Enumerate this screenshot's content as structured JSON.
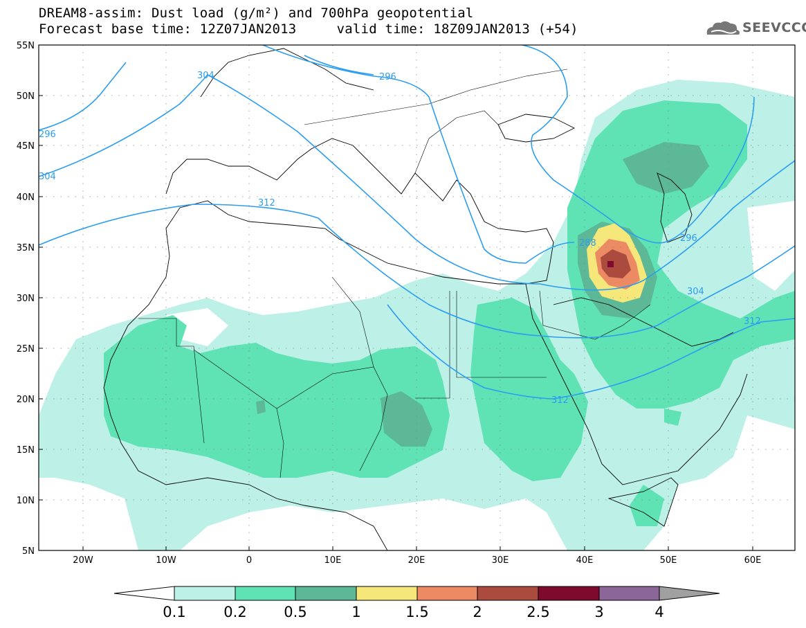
{
  "header": {
    "title_line1": "DREAM8-assim: Dust load (g/m²) and 700hPa geopotential",
    "title_line2": "Forecast base time: 12Z07JAN2013     valid time: 18Z09JAN2013 (+54)",
    "logo_text": "SEEVCCC"
  },
  "axes": {
    "lat_labels": [
      "55N",
      "50N",
      "45N",
      "40N",
      "35N",
      "30N",
      "25N",
      "20N",
      "15N",
      "10N",
      "5N"
    ],
    "lon_labels": [
      "20W",
      "10W",
      "0",
      "10E",
      "20E",
      "30E",
      "40E",
      "50E",
      "60E"
    ]
  },
  "contours": {
    "labels": [
      "304",
      "296",
      "296",
      "304",
      "312",
      "288",
      "296",
      "304",
      "312",
      "312"
    ]
  },
  "colorbar": {
    "labels": [
      "0.1",
      "0.2",
      "0.5",
      "1",
      "1.5",
      "2",
      "2.5",
      "3",
      "4"
    ],
    "colors": [
      "#ffffff",
      "#bdf0e6",
      "#5fe3b4",
      "#5cb896",
      "#f5e77a",
      "#ec8a64",
      "#aa4b3e",
      "#7e0a2e",
      "#8a6699",
      "#a0a0a0"
    ]
  },
  "colors": {
    "contour_line": "#2b9df0",
    "level_0.1": "#bdf0e6",
    "level_0.2": "#5fe3b4",
    "level_0.5": "#5cb896",
    "level_1": "#f5e77a",
    "level_1.5": "#ec8a64",
    "level_2": "#aa4b3e",
    "level_2.5": "#7e0a2e"
  }
}
